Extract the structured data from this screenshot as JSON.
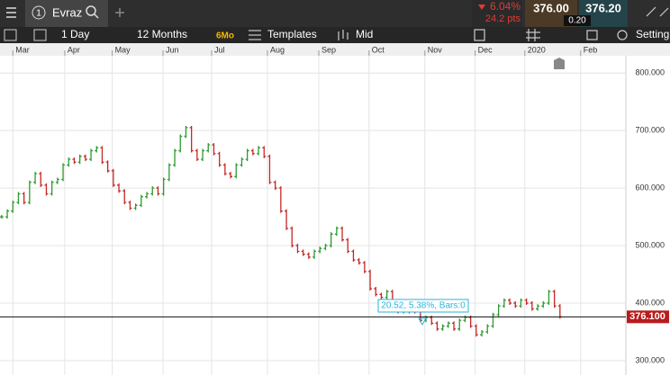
{
  "ui": {
    "tab_number": "1",
    "instrument": "Evraz",
    "change_pct": "6.04%",
    "change_pts": "24.2 pts",
    "bid": "376.00",
    "spread": "0.20",
    "ask": "376.20",
    "interval": "1 Day",
    "range": "12 Months",
    "range_badge": "6Mo",
    "templates": "Templates",
    "price_type": "Mid",
    "settings": "Setting"
  },
  "chart_data": {
    "type": "ohlc",
    "values": [
      550,
      560,
      575,
      590,
      575,
      610,
      625,
      605,
      590,
      610,
      615,
      640,
      650,
      645,
      655,
      650,
      665,
      670,
      645,
      630,
      605,
      595,
      575,
      565,
      570,
      585,
      590,
      600,
      590,
      615,
      640,
      665,
      690,
      705,
      665,
      650,
      665,
      675,
      660,
      640,
      625,
      620,
      640,
      650,
      665,
      660,
      670,
      655,
      610,
      600,
      560,
      530,
      500,
      490,
      485,
      480,
      490,
      495,
      500,
      520,
      530,
      510,
      490,
      475,
      470,
      455,
      425,
      415,
      410,
      420,
      400,
      385,
      385,
      390,
      385,
      370,
      375,
      365,
      355,
      360,
      365,
      355,
      370,
      375,
      360,
      345,
      350,
      360,
      380,
      395,
      405,
      400,
      395,
      405,
      400,
      390,
      395,
      400,
      420,
      395,
      376
    ],
    "up_color": "#2e9a2e",
    "down_color": "#c62828",
    "xlim": [
      -0.3,
      111.8
    ],
    "xticks": [
      {
        "value": 2,
        "label": "Mar"
      },
      {
        "value": 11.3,
        "label": "Apr"
      },
      {
        "value": 19.8,
        "label": "May"
      },
      {
        "value": 28.9,
        "label": "Jun"
      },
      {
        "value": 37.6,
        "label": "Jul"
      },
      {
        "value": 47.6,
        "label": "Aug"
      },
      {
        "value": 56.8,
        "label": "Sep"
      },
      {
        "value": 65.8,
        "label": "Oct"
      },
      {
        "value": 75.8,
        "label": "Nov"
      },
      {
        "value": 84.8,
        "label": "Dec"
      },
      {
        "value": 93.7,
        "label": "2020"
      },
      {
        "value": 103.7,
        "label": "Feb"
      }
    ],
    "ylim": [
      275,
      830
    ],
    "yticks": [
      {
        "value": 300,
        "label": "300.000"
      },
      {
        "value": 400,
        "label": "400.000"
      },
      {
        "value": 500,
        "label": "500.000"
      },
      {
        "value": 600,
        "label": "600.000"
      },
      {
        "value": 700,
        "label": "700.000"
      },
      {
        "value": 800,
        "label": "800.000"
      }
    ],
    "grid": true,
    "hline": {
      "value": 376.1,
      "label": "376.100"
    },
    "annotation": "20.52, 5.38%, Bars:0"
  }
}
